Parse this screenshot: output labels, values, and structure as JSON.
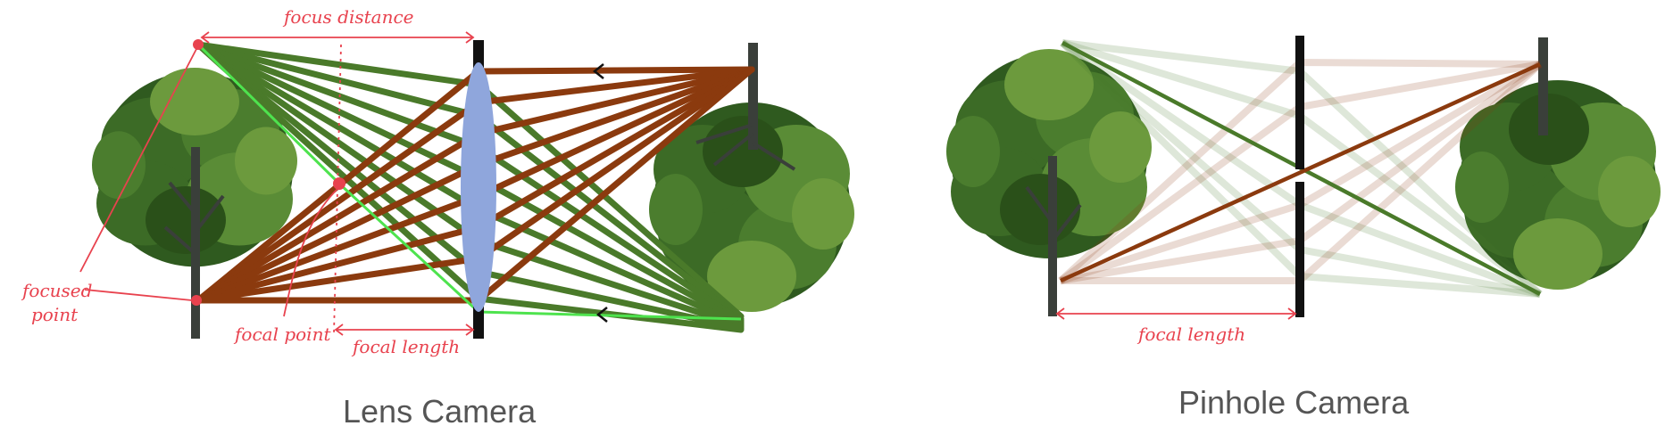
{
  "colors": {
    "green": "#4a7a2a",
    "brown": "#8b3a0e",
    "bright_green": "#4ee34e",
    "lens": "#8fa6dc",
    "annotation": "#e8424e",
    "dark": "#111111",
    "tree_dark": "#2f5a1f",
    "tree_light": "#6c9a3d",
    "trunk": "#3a3f3a"
  },
  "icons": {
    "tree": "tree-icon",
    "lens": "lens-icon",
    "arrow": "chevron-left-icon"
  },
  "lens_diagram": {
    "caption": "Lens Camera",
    "annotations": {
      "focus_distance": "focus distance",
      "focused_point_line1": "focused",
      "focused_point_line2": "point",
      "focal_point": "focal point",
      "focal_length": "focal length"
    }
  },
  "pinhole_diagram": {
    "caption": "Pinhole Camera",
    "annotations": {
      "focal_length": "focal length"
    }
  }
}
